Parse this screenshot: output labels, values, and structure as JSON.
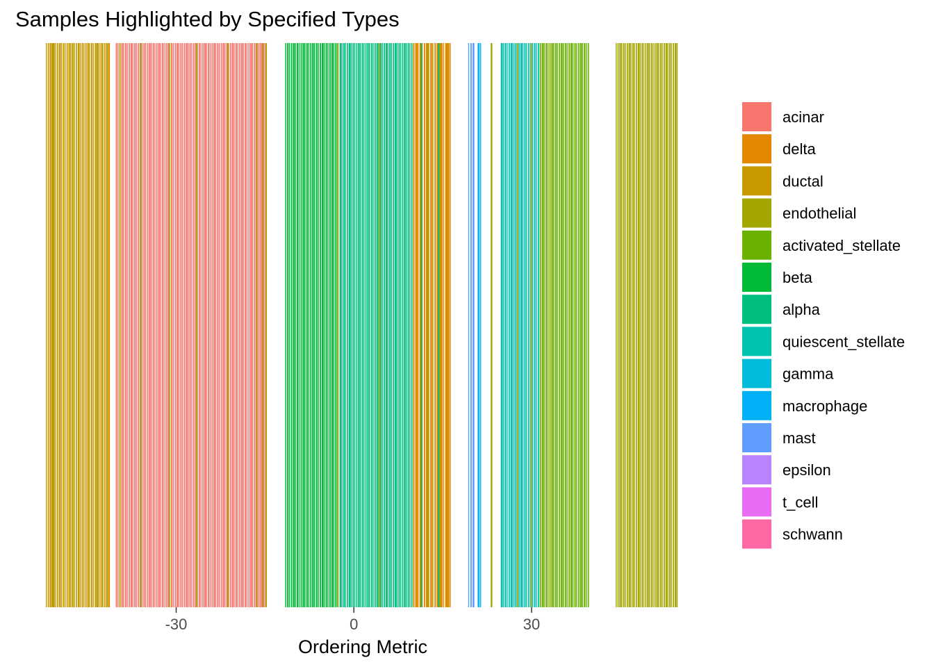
{
  "chart_data": {
    "type": "bar",
    "title": "Samples Highlighted by Specified Types",
    "xlabel": "Ordering Metric",
    "ylabel": "",
    "xlim": [
      -52,
      55
    ],
    "xticks": [
      -30,
      0,
      30
    ],
    "grid": false,
    "legend_position": "right",
    "legend": [
      {
        "name": "acinar",
        "color": "#F8766D"
      },
      {
        "name": "delta",
        "color": "#E58700"
      },
      {
        "name": "ductal",
        "color": "#C99800"
      },
      {
        "name": "endothelial",
        "color": "#A3A500"
      },
      {
        "name": "activated_stellate",
        "color": "#6BB100"
      },
      {
        "name": "beta",
        "color": "#00BA38"
      },
      {
        "name": "alpha",
        "color": "#00BF7D"
      },
      {
        "name": "quiescent_stellate",
        "color": "#00C0AF"
      },
      {
        "name": "gamma",
        "color": "#00BCD8"
      },
      {
        "name": "macrophage",
        "color": "#00B0F6"
      },
      {
        "name": "mast",
        "color": "#619CFF"
      },
      {
        "name": "epsilon",
        "color": "#B983FF"
      },
      {
        "name": "t_cell",
        "color": "#E76BF3"
      },
      {
        "name": "schwann",
        "color": "#FF67A4"
      }
    ],
    "segments": [
      {
        "type": "ductal",
        "x_start": -52,
        "x_end": -41.2,
        "count": 34
      },
      {
        "type": "acinar",
        "x_start": -40.2,
        "x_end": -14.7,
        "count": 82
      },
      {
        "type": "beta",
        "x_start": -11.6,
        "x_end": -2.5,
        "count": 28
      },
      {
        "type": "alpha",
        "x_start": -2.4,
        "x_end": 10,
        "count": 40
      },
      {
        "type": "delta",
        "x_start": 10,
        "x_end": 16.5,
        "count": 18
      },
      {
        "type": "mast",
        "x_start": 19.3,
        "x_end": 20.4,
        "count": 3
      },
      {
        "type": "macrophage",
        "x_start": 20.9,
        "x_end": 21.7,
        "count": 2
      },
      {
        "type": "endothelial",
        "x_start": 23.1,
        "x_end": 23.6,
        "count": 1
      },
      {
        "type": "quiescent_stellate",
        "x_start": 24.8,
        "x_end": 31.4,
        "count": 20
      },
      {
        "type": "activated_stellate",
        "x_start": 31.4,
        "x_end": 39.8,
        "count": 26
      },
      {
        "type": "endothelial",
        "x_start": 44.2,
        "x_end": 54.8,
        "count": 34
      }
    ],
    "sprinkles": [
      {
        "type": "endothelial",
        "x": [
          -50.9,
          -47.6,
          -43.5,
          -41.8,
          -39.6,
          -36.1,
          -31.2,
          -26.6,
          -21.4,
          -16.5,
          -15.5,
          -14.9
        ]
      },
      {
        "type": "ductal",
        "x": [
          -42.5
        ]
      },
      {
        "type": "delta",
        "x": [
          -41.4
        ]
      },
      {
        "type": "endothelial",
        "x": [
          -2.8,
          4.2,
          12.4,
          14.5
        ]
      },
      {
        "type": "ductal",
        "x": [
          10.5,
          13.2,
          15.6
        ]
      },
      {
        "type": "alpha",
        "x": [
          11.3,
          14.2
        ]
      },
      {
        "type": "endothelial",
        "x": [
          27.5,
          29.8,
          33.0
        ]
      }
    ]
  }
}
